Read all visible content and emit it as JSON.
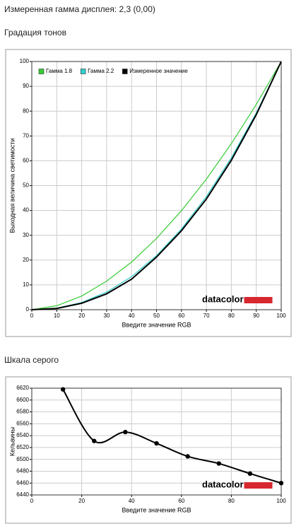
{
  "heading": "Измеренная гамма дисплея: 2,3 (0,00)",
  "chart_data": [
    {
      "type": "line",
      "title": "Градация тонов",
      "x_label": "Введите значение RGB",
      "y_label": "Выходная величина светимости",
      "watermark": "datacolor",
      "x": [
        0,
        10,
        20,
        30,
        40,
        50,
        60,
        70,
        80,
        90,
        100
      ],
      "series": [
        {
          "name": "Гамма 1.8",
          "color": "#33cc33",
          "values": [
            0,
            1.6,
            5.5,
            11.5,
            19.2,
            28.7,
            39.9,
            52.6,
            66.9,
            82.7,
            100
          ]
        },
        {
          "name": "Гамма 2.2",
          "color": "#33cccc",
          "values": [
            0,
            0.6,
            2.9,
            7.1,
            13.3,
            21.8,
            32.5,
            45.6,
            61.2,
            79.3,
            100
          ]
        },
        {
          "name": "Измеренное значение",
          "color": "#000000",
          "values": [
            0,
            0.5,
            2.6,
            6.4,
            12.3,
            21.2,
            31.8,
            44.6,
            60.2,
            78.6,
            100
          ]
        }
      ],
      "xlim": [
        0,
        100
      ],
      "xticks": [
        0,
        10,
        20,
        30,
        40,
        50,
        60,
        70,
        80,
        90,
        100
      ],
      "ylim": [
        0,
        100
      ],
      "yticks": [
        0,
        10,
        20,
        30,
        40,
        50,
        60,
        70,
        80,
        90,
        100
      ],
      "grid": true,
      "legend": "top-left",
      "smooth": false,
      "markers": false
    },
    {
      "type": "line",
      "title": "Шкала серого",
      "x_label": "Введите значение RGB",
      "y_label": "Кельвины",
      "watermark": "datacolor",
      "x": [
        12.5,
        25,
        37.5,
        50,
        62.5,
        75,
        87.5,
        100
      ],
      "series": [
        {
          "color": "#000000",
          "values": [
            6618,
            6531,
            6546,
            6527,
            6505,
            6493,
            6476,
            6460
          ]
        }
      ],
      "xlim": [
        0,
        100
      ],
      "xticks": [
        0,
        20,
        40,
        60,
        80,
        100
      ],
      "ylim": [
        6440,
        6620
      ],
      "yticks": [
        6440,
        6460,
        6480,
        6500,
        6520,
        6540,
        6560,
        6580,
        6600,
        6620
      ],
      "grid": true,
      "smooth": true,
      "markers": true
    }
  ]
}
